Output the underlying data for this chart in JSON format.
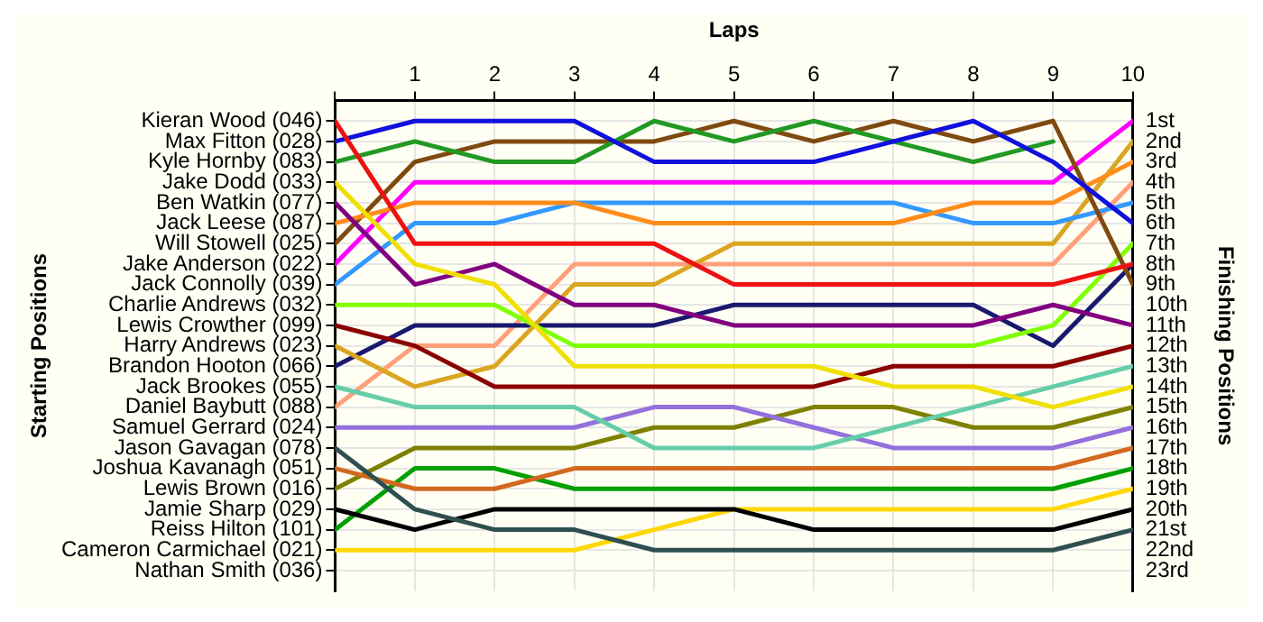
{
  "chart_data": {
    "type": "line",
    "xlabel": "Laps",
    "y2label": "Finishing Positions",
    "annotations": [
      "Starting Positions"
    ],
    "x": [
      0,
      1,
      2,
      3,
      4,
      5,
      6,
      7,
      8,
      9,
      10
    ],
    "xlim": [
      0,
      10
    ],
    "xticks": [
      {
        "value": 0,
        "label": null
      },
      1,
      2,
      3,
      4,
      5,
      6,
      7,
      8,
      9,
      10
    ],
    "y_categories": [
      "Kieran Wood (046)",
      "Max Fitton (028)",
      "Kyle Hornby (083)",
      "Jake Dodd (033)",
      "Ben Watkin (077)",
      "Jack Leese (087)",
      "Will Stowell (025)",
      "Jake Anderson (022)",
      "Jack Connolly (039)",
      "Charlie Andrews (032)",
      "Lewis Crowther (099)",
      "Harry Andrews (023)",
      "Brandon Hooton (066)",
      "Jack Brookes (055)",
      "Daniel Baybutt (088)",
      "Samuel Gerrard (024)",
      "Jason Gavagan (078)",
      "Joshua Kavanagh (051)",
      "Lewis Brown (016)",
      "Jamie Sharp (029)",
      "Reiss Hilton (101)",
      "Cameron Carmichael (021)",
      "Nathan Smith (036)"
    ],
    "y2lim": [
      24,
      0
    ],
    "y2ticks": [
      {
        "value": 1,
        "label": "1st"
      },
      {
        "value": 2,
        "label": "2nd"
      },
      {
        "value": 3,
        "label": "3rd"
      },
      {
        "value": 4,
        "label": "4th"
      },
      {
        "value": 5,
        "label": "5th"
      },
      {
        "value": 6,
        "label": "6th"
      },
      {
        "value": 7,
        "label": "7th"
      },
      {
        "value": 8,
        "label": "8th"
      },
      {
        "value": 9,
        "label": "9th"
      },
      {
        "value": 10,
        "label": "10th"
      },
      {
        "value": 11,
        "label": "11th"
      },
      {
        "value": 12,
        "label": "12th"
      },
      {
        "value": 13,
        "label": "13th"
      },
      {
        "value": 14,
        "label": "14th"
      },
      {
        "value": 15,
        "label": "15th"
      },
      {
        "value": 16,
        "label": "16th"
      },
      {
        "value": 17,
        "label": "17th"
      },
      {
        "value": 18,
        "label": "18th"
      },
      {
        "value": 19,
        "label": "19th"
      },
      {
        "value": 20,
        "label": "20th"
      },
      {
        "value": 21,
        "label": "21st"
      },
      {
        "value": 22,
        "label": "22nd"
      },
      {
        "value": 23,
        "label": "23rd"
      }
    ],
    "grid": true,
    "legend": false,
    "line_style": "solid",
    "series": [
      {
        "color": "#ee1111",
        "axis": "y2",
        "values": [
          1,
          7,
          7,
          7,
          7,
          9,
          9,
          9,
          9,
          9,
          8
        ]
      },
      {
        "color": "#1111dd",
        "axis": "y2",
        "values": [
          2,
          1,
          1,
          1,
          3,
          3,
          3,
          2,
          1,
          3,
          6
        ]
      },
      {
        "color": "#229922",
        "axis": "y2",
        "values": [
          3,
          2,
          3,
          3,
          1,
          2,
          1,
          2,
          3,
          2,
          null
        ]
      },
      {
        "color": "#f0e000",
        "axis": "y2",
        "values": [
          4,
          8,
          9,
          13,
          13,
          13,
          13,
          14,
          14,
          15,
          14
        ]
      },
      {
        "color": "#800080",
        "axis": "y2",
        "values": [
          5,
          9,
          8,
          10,
          10,
          11,
          11,
          11,
          11,
          10,
          11
        ]
      },
      {
        "color": "#ff8c1a",
        "axis": "y2",
        "values": [
          6,
          5,
          5,
          5,
          6,
          6,
          6,
          6,
          5,
          5,
          3
        ]
      },
      {
        "color": "#7f4a10",
        "axis": "y2",
        "values": [
          7,
          3,
          2,
          2,
          2,
          1,
          2,
          1,
          2,
          1,
          9
        ]
      },
      {
        "color": "#ff00ff",
        "axis": "y2",
        "values": [
          8,
          4,
          4,
          4,
          4,
          4,
          4,
          4,
          4,
          4,
          1
        ]
      },
      {
        "color": "#3399ff",
        "axis": "y2",
        "values": [
          9,
          6,
          6,
          5,
          5,
          5,
          5,
          5,
          6,
          6,
          5
        ]
      },
      {
        "color": "#80ff00",
        "axis": "y2",
        "values": [
          10,
          10,
          10,
          12,
          12,
          12,
          12,
          12,
          12,
          11,
          7
        ]
      },
      {
        "color": "#8b0000",
        "axis": "y2",
        "values": [
          11,
          12,
          14,
          14,
          14,
          14,
          14,
          13,
          13,
          13,
          12
        ]
      },
      {
        "color": "#daa520",
        "axis": "y2",
        "values": [
          12,
          14,
          13,
          9,
          9,
          7,
          7,
          7,
          7,
          7,
          2
        ]
      },
      {
        "color": "#191970",
        "axis": "y2",
        "values": [
          13,
          11,
          11,
          11,
          11,
          10,
          10,
          10,
          10,
          12,
          8
        ]
      },
      {
        "color": "#66cdaa",
        "axis": "y2",
        "values": [
          14,
          15,
          15,
          15,
          17,
          17,
          17,
          16,
          15,
          14,
          13
        ]
      },
      {
        "color": "#ffa07a",
        "axis": "y2",
        "values": [
          15,
          12,
          12,
          8,
          8,
          8,
          8,
          8,
          8,
          8,
          4
        ]
      },
      {
        "color": "#9370db",
        "axis": "y2",
        "values": [
          16,
          16,
          16,
          16,
          15,
          15,
          16,
          17,
          17,
          17,
          16
        ]
      },
      {
        "color": "#2f4f4f",
        "axis": "y2",
        "values": [
          17,
          20,
          21,
          21,
          22,
          22,
          22,
          22,
          22,
          22,
          21
        ]
      },
      {
        "color": "#d2691e",
        "axis": "y2",
        "values": [
          18,
          19,
          19,
          18,
          18,
          18,
          18,
          18,
          18,
          18,
          17
        ]
      },
      {
        "color": "#808000",
        "axis": "y2",
        "values": [
          19,
          17,
          17,
          17,
          16,
          16,
          15,
          15,
          16,
          16,
          15
        ]
      },
      {
        "color": "#000000",
        "axis": "y2",
        "values": [
          20,
          21,
          20,
          20,
          20,
          20,
          21,
          21,
          21,
          21,
          20
        ]
      },
      {
        "color": "#00a000",
        "axis": "y2",
        "values": [
          21,
          18,
          18,
          19,
          19,
          19,
          19,
          19,
          19,
          19,
          18
        ]
      },
      {
        "color": "#ffd700",
        "axis": "y2",
        "values": [
          22,
          22,
          22,
          22,
          21,
          20,
          20,
          20,
          20,
          20,
          19
        ]
      }
    ]
  }
}
